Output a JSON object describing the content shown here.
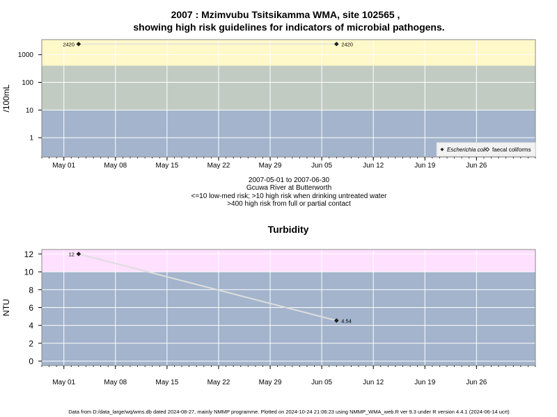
{
  "chart_data": [
    {
      "type": "scatter",
      "title_line1": "2007 : Mzimvubu Tsitsikamma WMA, site 102565 ,",
      "title_line2": "showing high risk guidelines for indicators of microbial pathogens.",
      "ylabel": "/100mL",
      "yscale": "log",
      "ylim": [
        0.2,
        3500
      ],
      "yticks": [
        1,
        10,
        100,
        1000
      ],
      "ytick_labels": [
        "1",
        "10",
        "100",
        "1000"
      ],
      "xlim": [
        "2007-04-28",
        "2007-07-04"
      ],
      "xticks": [
        "2007-05-01",
        "2007-05-08",
        "2007-05-15",
        "2007-05-22",
        "2007-05-29",
        "2007-06-05",
        "2007-06-12",
        "2007-06-19",
        "2007-06-26"
      ],
      "xtick_labels": [
        "May 01",
        "May 08",
        "May 15",
        "May 22",
        "May 29",
        "Jun 05",
        "Jun 12",
        "Jun 19",
        "Jun 26"
      ],
      "bands": [
        {
          "from": 0.2,
          "to": 10,
          "color": "#a3b4cc"
        },
        {
          "from": 10,
          "to": 400,
          "color": "#c2cbc2"
        },
        {
          "from": 400,
          "to": 3500,
          "color": "#fff8c8"
        }
      ],
      "series": [
        {
          "name": "Escherichia coli",
          "marker": "diamond-filled",
          "x": [
            "2007-05-03",
            "2007-06-07"
          ],
          "y": [
            2420,
            2420
          ],
          "labels": [
            "2420",
            "2420"
          ]
        }
      ],
      "legend": {
        "position": "bottom-right",
        "entries": [
          "Escherichia coli",
          "faecal coliforms"
        ]
      },
      "caption_lines": [
        "2007-05-01 to 2007-06-30",
        "Gcuwa River at Butterworth",
        "<=10 low-med risk; >10 high risk when drinking untreated water",
        ">400 high risk from full or partial contact"
      ],
      "grid": true
    },
    {
      "type": "line",
      "title": "Turbidity",
      "ylabel": "NTU",
      "ylim": [
        -0.5,
        12.5
      ],
      "yticks": [
        0,
        2,
        4,
        6,
        8,
        10,
        12
      ],
      "ytick_labels": [
        "0",
        "2",
        "4",
        "6",
        "8",
        "10",
        "12"
      ],
      "xlim": [
        "2007-04-28",
        "2007-07-04"
      ],
      "xticks": [
        "2007-05-01",
        "2007-05-08",
        "2007-05-15",
        "2007-05-22",
        "2007-05-29",
        "2007-06-05",
        "2007-06-12",
        "2007-06-19",
        "2007-06-26"
      ],
      "xtick_labels": [
        "May 01",
        "May 08",
        "May 15",
        "May 22",
        "May 29",
        "Jun 05",
        "Jun 12",
        "Jun 19",
        "Jun 26"
      ],
      "bands": [
        {
          "from": -0.5,
          "to": 10,
          "color": "#a3b4cc"
        },
        {
          "from": 10,
          "to": 12.5,
          "color": "#ffe0ff"
        }
      ],
      "series": [
        {
          "marker": "diamond-filled",
          "x": [
            "2007-05-03",
            "2007-06-07"
          ],
          "y": [
            12,
            4.54
          ],
          "labels": [
            "12",
            "4.54"
          ]
        }
      ],
      "grid": true
    }
  ],
  "footer": "Data from D:/data_large/wq/wms.db dated 2024-08-27, mainly NMMP programme. Plotted on 2024-10-24 21:06:23 using NMMP_WMA_web.R ver 9.3 under R version 4.4.1 (2024-06-14 ucrt)"
}
